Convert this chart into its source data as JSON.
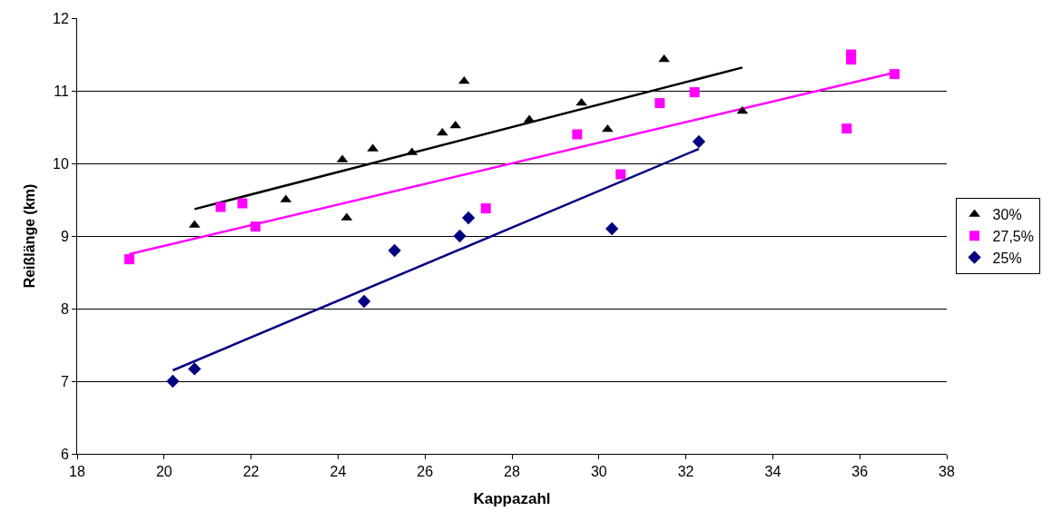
{
  "chart_data": {
    "type": "scatter",
    "xlabel": "Kappazahl",
    "ylabel": "Reißlänge (km)",
    "xlim": [
      18,
      38
    ],
    "xticks": [
      18,
      20,
      22,
      24,
      26,
      28,
      30,
      32,
      34,
      36,
      38
    ],
    "ylim": [
      6,
      12
    ],
    "yticks": [
      6,
      7,
      8,
      9,
      10,
      11,
      12
    ],
    "grid": "y",
    "legend": "right",
    "series": [
      {
        "name": "30%",
        "color": "#000000",
        "marker": "triangle",
        "x": [
          20.7,
          22.8,
          24.1,
          24.2,
          24.8,
          25.7,
          26.4,
          26.7,
          26.9,
          28.4,
          29.6,
          30.2,
          31.5,
          33.3
        ],
        "values": [
          9.15,
          9.5,
          10.05,
          9.25,
          10.2,
          10.15,
          10.42,
          10.52,
          11.13,
          10.6,
          10.83,
          10.47,
          11.43,
          10.72
        ]
      },
      {
        "name": "27,5%",
        "color": "#ff00ff",
        "marker": "square",
        "x": [
          19.2,
          21.3,
          21.8,
          22.1,
          27.4,
          29.5,
          30.5,
          31.4,
          32.2,
          35.7,
          35.8,
          35.8,
          36.8
        ],
        "values": [
          8.68,
          9.4,
          9.45,
          9.13,
          9.38,
          10.4,
          9.85,
          10.83,
          10.98,
          10.48,
          11.5,
          11.43,
          11.23
        ]
      },
      {
        "name": "25%",
        "color": "#000080",
        "marker": "diamond",
        "x": [
          20.2,
          20.7,
          24.6,
          25.3,
          26.8,
          27.0,
          30.3,
          32.3
        ],
        "values": [
          7.0,
          7.17,
          8.1,
          8.8,
          9.0,
          9.25,
          9.1,
          10.3
        ]
      },
      {
        "type": "line",
        "color": "#000000",
        "x": [
          20.7,
          33.3
        ],
        "values": [
          9.37,
          11.32
        ]
      },
      {
        "type": "line",
        "color": "#ff00ff",
        "x": [
          19.2,
          36.8
        ],
        "values": [
          8.75,
          11.25
        ]
      },
      {
        "type": "line",
        "color": "#000080",
        "x": [
          20.2,
          32.3
        ],
        "values": [
          7.15,
          10.2
        ]
      }
    ]
  }
}
